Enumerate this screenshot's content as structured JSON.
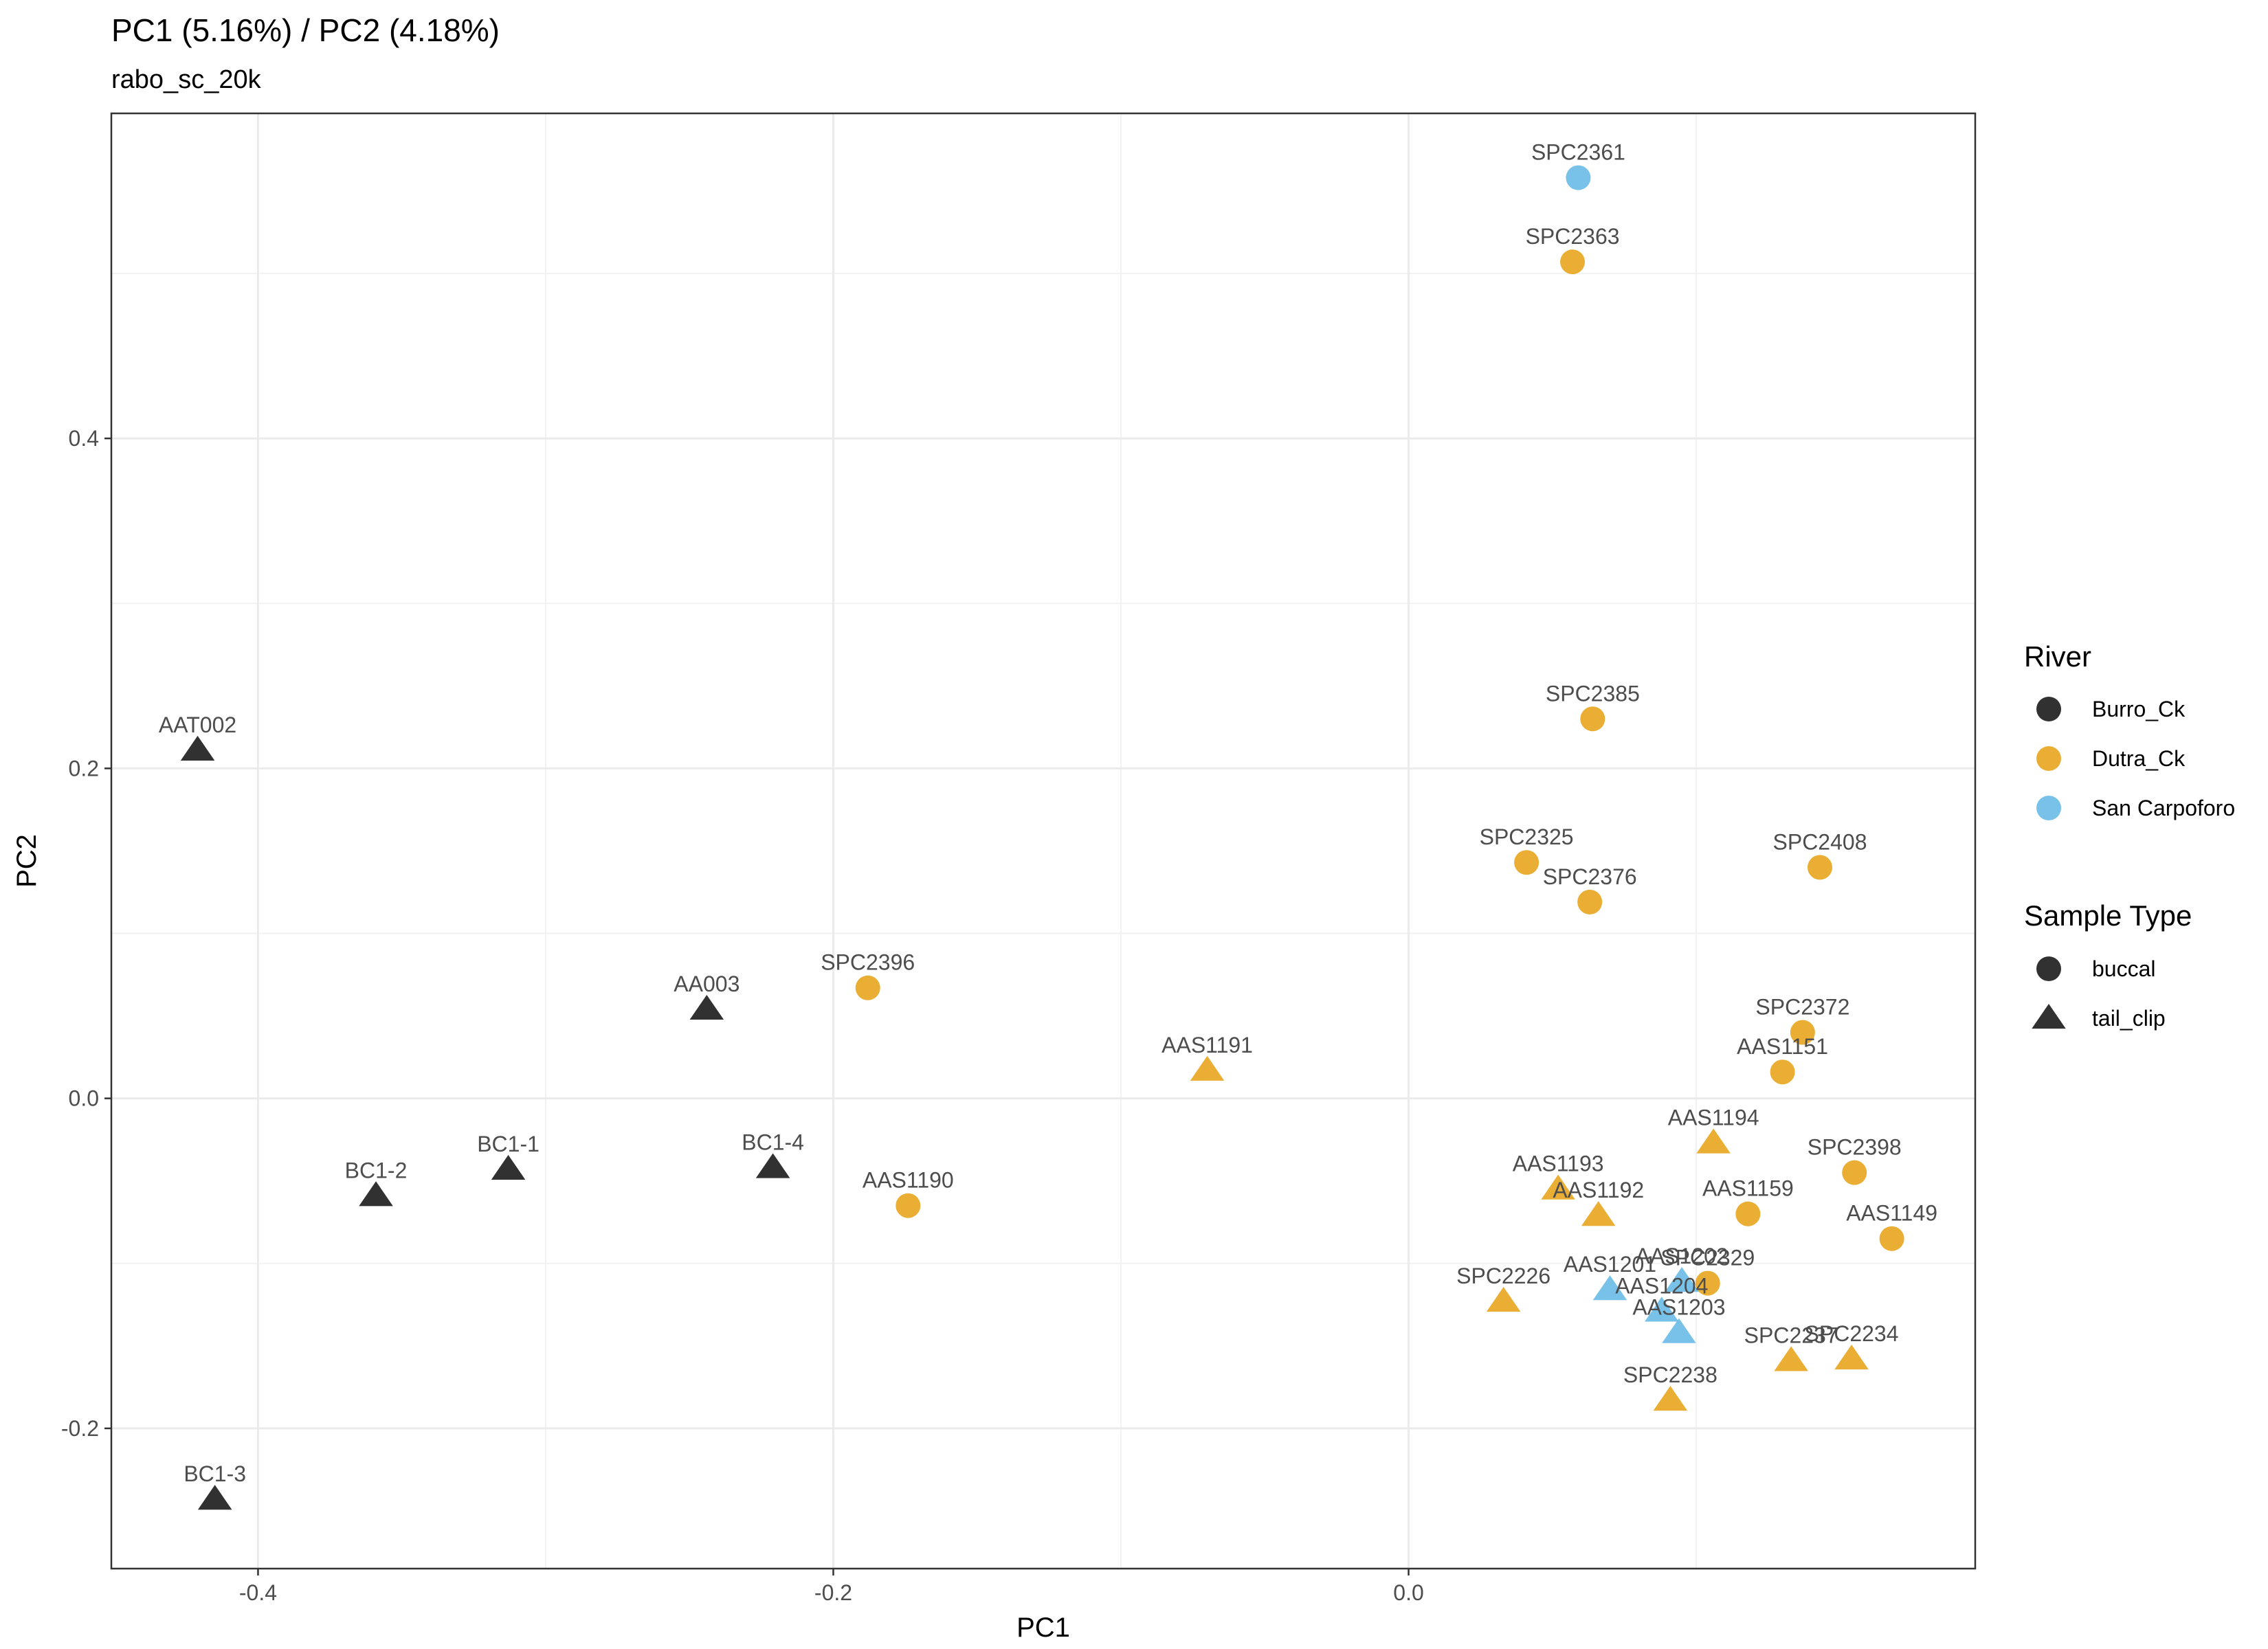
{
  "chart_data": {
    "type": "scatter",
    "title": "PC1 (5.16%) / PC2 (4.18%)",
    "subtitle": "rabo_sc_20k",
    "xlabel": "PC1",
    "ylabel": "PC2",
    "xlim": [
      -0.451,
      0.197
    ],
    "ylim": [
      -0.285,
      0.597
    ],
    "x_ticks": [
      -0.4,
      -0.2,
      0.0
    ],
    "x_tick_labels": [
      "-0.4",
      "-0.2",
      "0.0"
    ],
    "y_ticks": [
      -0.2,
      0.0,
      0.2,
      0.4
    ],
    "y_tick_labels": [
      "-0.2",
      "0.0",
      "0.2",
      "0.4"
    ],
    "grid": true,
    "colors": {
      "Burro_Ck": "#1f1f1f",
      "Dutra_Ck": "#e8a723",
      "San Carpoforo": "#6cbde8"
    },
    "legend": {
      "placement": "right",
      "river": {
        "title": "River",
        "items": [
          "Burro_Ck",
          "Dutra_Ck",
          "San Carpoforo"
        ]
      },
      "sample_type": {
        "title": "Sample Type",
        "items": [
          "buccal",
          "tail_clip"
        ]
      }
    },
    "points": [
      {
        "label": "SPC2361",
        "x": 0.059,
        "y": 0.558,
        "river": "San Carpoforo",
        "type": "buccal"
      },
      {
        "label": "SPC2363",
        "x": 0.057,
        "y": 0.507,
        "river": "Dutra_Ck",
        "type": "buccal"
      },
      {
        "label": "SPC2385",
        "x": 0.064,
        "y": 0.23,
        "river": "Dutra_Ck",
        "type": "buccal"
      },
      {
        "label": "SPC2325",
        "x": 0.041,
        "y": 0.143,
        "river": "Dutra_Ck",
        "type": "buccal"
      },
      {
        "label": "SPC2408",
        "x": 0.143,
        "y": 0.14,
        "river": "Dutra_Ck",
        "type": "buccal"
      },
      {
        "label": "SPC2376",
        "x": 0.063,
        "y": 0.119,
        "river": "Dutra_Ck",
        "type": "buccal"
      },
      {
        "label": "SPC2396",
        "x": -0.188,
        "y": 0.067,
        "river": "Dutra_Ck",
        "type": "buccal"
      },
      {
        "label": "SPC2372",
        "x": 0.137,
        "y": 0.04,
        "river": "Dutra_Ck",
        "type": "buccal"
      },
      {
        "label": "AAS1151",
        "x": 0.13,
        "y": 0.016,
        "river": "Dutra_Ck",
        "type": "buccal"
      },
      {
        "label": "SPC2398",
        "x": 0.155,
        "y": -0.045,
        "river": "Dutra_Ck",
        "type": "buccal"
      },
      {
        "label": "AAS1190",
        "x": -0.174,
        "y": -0.065,
        "river": "Dutra_Ck",
        "type": "buccal"
      },
      {
        "label": "AAS1159",
        "x": 0.118,
        "y": -0.07,
        "river": "Dutra_Ck",
        "type": "buccal"
      },
      {
        "label": "AAS1149",
        "x": 0.168,
        "y": -0.085,
        "river": "Dutra_Ck",
        "type": "buccal"
      },
      {
        "label": "SPC2329",
        "x": 0.104,
        "y": -0.112,
        "river": "Dutra_Ck",
        "type": "buccal"
      },
      {
        "label": "AAT002",
        "x": -0.421,
        "y": 0.211,
        "river": "Burro_Ck",
        "type": "tail_clip"
      },
      {
        "label": "AA003",
        "x": -0.244,
        "y": 0.054,
        "river": "Burro_Ck",
        "type": "tail_clip"
      },
      {
        "label": "BC1-1",
        "x": -0.313,
        "y": -0.043,
        "river": "Burro_Ck",
        "type": "tail_clip"
      },
      {
        "label": "BC1-4",
        "x": -0.221,
        "y": -0.042,
        "river": "Burro_Ck",
        "type": "tail_clip"
      },
      {
        "label": "BC1-2",
        "x": -0.359,
        "y": -0.059,
        "river": "Burro_Ck",
        "type": "tail_clip"
      },
      {
        "label": "BC1-3",
        "x": -0.415,
        "y": -0.243,
        "river": "Burro_Ck",
        "type": "tail_clip"
      },
      {
        "label": "AAS1191",
        "x": -0.07,
        "y": 0.017,
        "river": "Dutra_Ck",
        "type": "tail_clip"
      },
      {
        "label": "AAS1194",
        "x": 0.106,
        "y": -0.027,
        "river": "Dutra_Ck",
        "type": "tail_clip"
      },
      {
        "label": "AAS1193",
        "x": 0.052,
        "y": -0.055,
        "river": "Dutra_Ck",
        "type": "tail_clip"
      },
      {
        "label": "AAS1192",
        "x": 0.066,
        "y": -0.071,
        "river": "Dutra_Ck",
        "type": "tail_clip"
      },
      {
        "label": "SPC2226",
        "x": 0.033,
        "y": -0.123,
        "river": "Dutra_Ck",
        "type": "tail_clip"
      },
      {
        "label": "SPC2237",
        "x": 0.133,
        "y": -0.159,
        "river": "Dutra_Ck",
        "type": "tail_clip"
      },
      {
        "label": "SPC2234",
        "x": 0.154,
        "y": -0.158,
        "river": "Dutra_Ck",
        "type": "tail_clip"
      },
      {
        "label": "SPC2238",
        "x": 0.091,
        "y": -0.183,
        "river": "Dutra_Ck",
        "type": "tail_clip"
      },
      {
        "label": "AAS1201",
        "x": 0.07,
        "y": -0.116,
        "river": "San Carpoforo",
        "type": "tail_clip"
      },
      {
        "label": "AAS1202",
        "x": 0.095,
        "y": -0.111,
        "river": "San Carpoforo",
        "type": "tail_clip"
      },
      {
        "label": "AAS1204",
        "x": 0.088,
        "y": -0.129,
        "river": "San Carpoforo",
        "type": "tail_clip"
      },
      {
        "label": "AAS1203",
        "x": 0.094,
        "y": -0.142,
        "river": "San Carpoforo",
        "type": "tail_clip"
      }
    ]
  }
}
